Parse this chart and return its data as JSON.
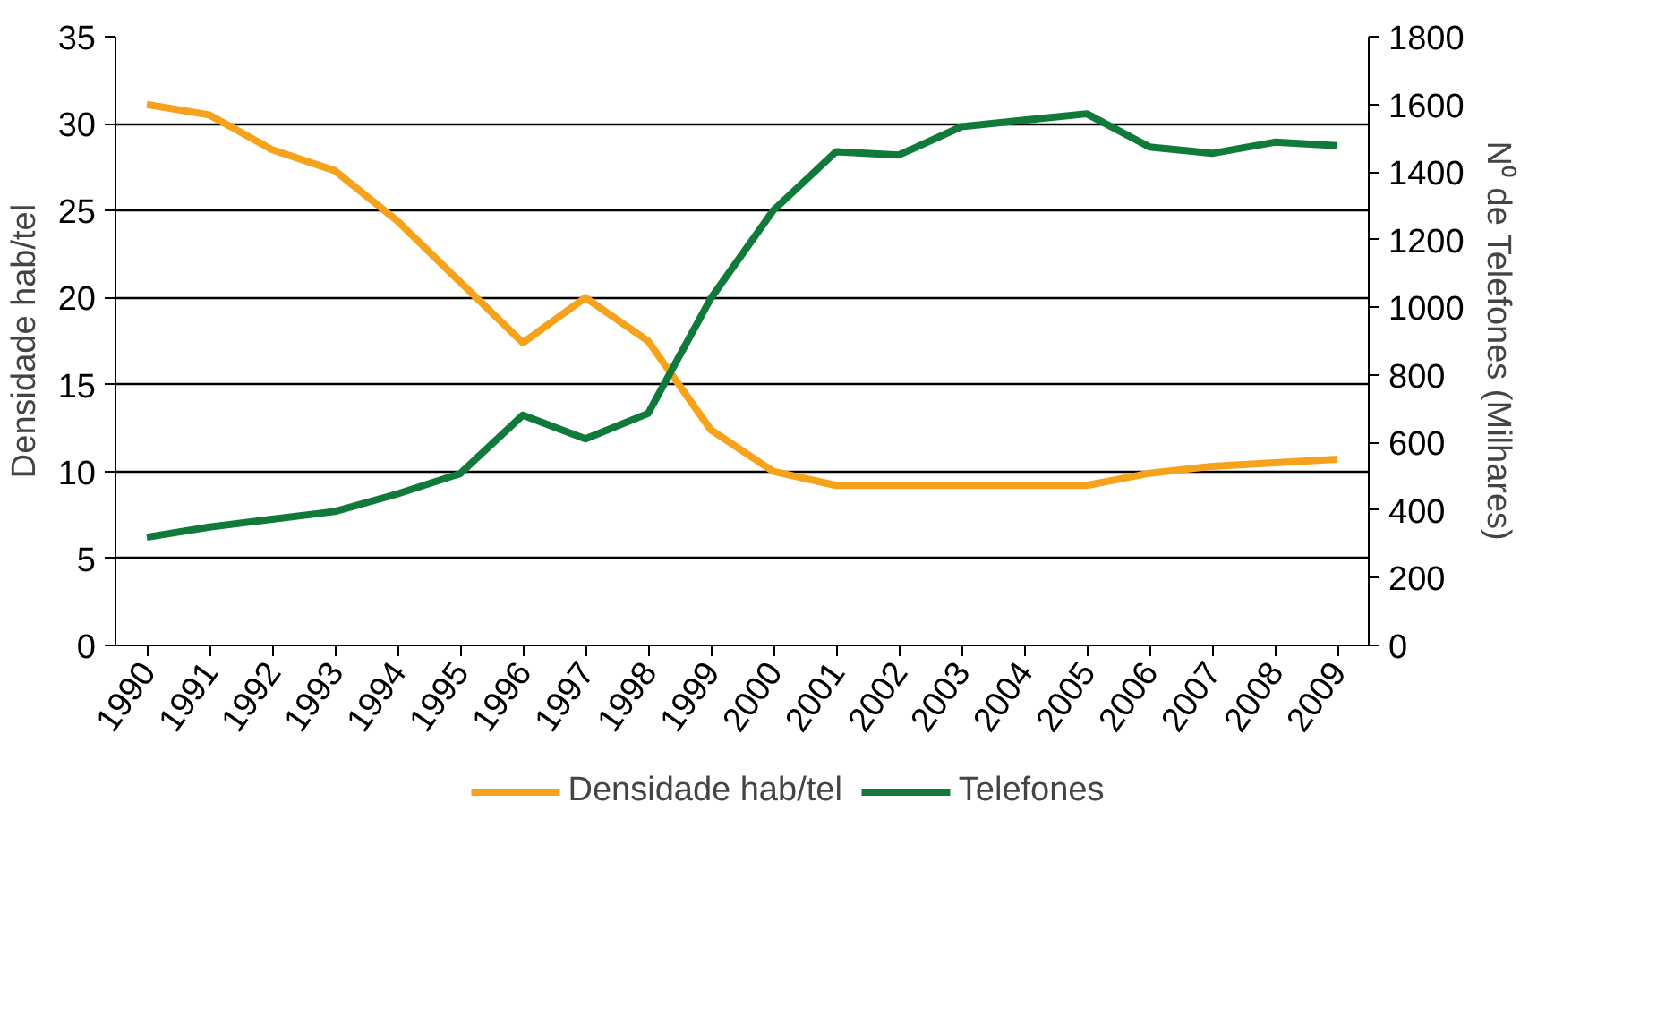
{
  "chart_data": {
    "type": "line",
    "categories": [
      "1990",
      "1991",
      "1992",
      "1993",
      "1994",
      "1995",
      "1996",
      "1997",
      "1998",
      "1999",
      "2000",
      "2001",
      "2002",
      "2003",
      "2004",
      "2005",
      "2006",
      "2007",
      "2008",
      "2009"
    ],
    "series": [
      {
        "name": "Densidade hab/tel",
        "color": "#f7a21b",
        "values": [
          31.1,
          30.5,
          28.5,
          27.3,
          24.4,
          20.9,
          17.4,
          20.0,
          17.5,
          12.4,
          10.0,
          9.2,
          9.2,
          9.2,
          9.2,
          9.2,
          9.9,
          10.3,
          10.5,
          10.7
        ]
      },
      {
        "name": "Telefones",
        "color": "#0f7a3a",
        "axis": "y2",
        "values": [
          320,
          350,
          373,
          396,
          448,
          508,
          681,
          611,
          686,
          1026,
          1287,
          1460,
          1450,
          1534,
          1553,
          1572,
          1474,
          1455,
          1488,
          1478
        ]
      }
    ],
    "ylabel": "Densidade hab/tel",
    "y2label": "N⁰ de Telefones (Milhares)",
    "ylim": [
      0,
      35
    ],
    "yticks": [
      0,
      5,
      10,
      15,
      20,
      25,
      30,
      35
    ],
    "y2lim": [
      0,
      1800
    ],
    "y2ticks": [
      0,
      200,
      400,
      600,
      800,
      1000,
      1200,
      1400,
      1600,
      1800
    ],
    "grid": "y",
    "legend": "bottom",
    "marker": "none",
    "line_style": "solid"
  }
}
